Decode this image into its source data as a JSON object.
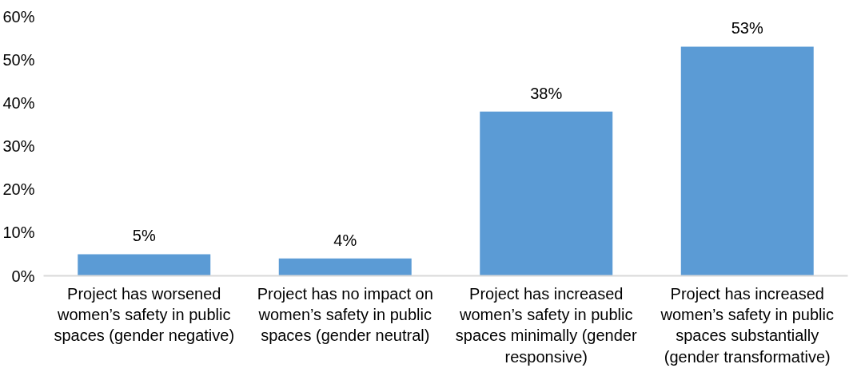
{
  "chart_data": {
    "type": "bar",
    "categories": [
      "Project has worsened women’s safety in public spaces (gender negative)",
      "Project has no impact on women’s safety in public spaces (gender neutral)",
      "Project has increased women’s safety in public spaces minimally (gender responsive)",
      "Project has increased women’s safety in public spaces substantially (gender transformative)"
    ],
    "values": [
      5,
      4,
      38,
      53
    ],
    "color": "#5b9bd5",
    "ylim": [
      0,
      60
    ],
    "yticks": [
      {
        "value": 0,
        "label": "0%"
      },
      {
        "value": 10,
        "label": "10%"
      },
      {
        "value": 20,
        "label": "20%"
      },
      {
        "value": 30,
        "label": "30%"
      },
      {
        "value": 40,
        "label": "40%"
      },
      {
        "value": 50,
        "label": "50%"
      },
      {
        "value": 60,
        "label": "60%"
      }
    ],
    "value_labels": [
      "5%",
      "4%",
      "38%",
      "53%"
    ],
    "grid": false
  }
}
